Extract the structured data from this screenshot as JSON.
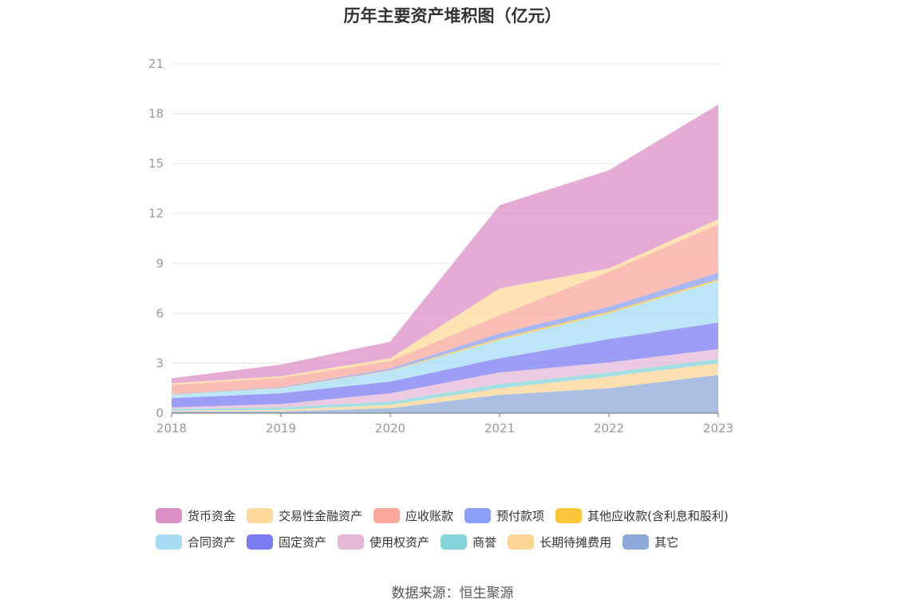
{
  "title": "历年主要资产堆积图（亿元）",
  "source": "数据来源：恒生聚源",
  "chart_data": {
    "type": "area",
    "stacked": true,
    "title": "历年主要资产堆积图（亿元）",
    "x": [
      "2018",
      "2019",
      "2020",
      "2021",
      "2022",
      "2023"
    ],
    "yticks": [
      0,
      3,
      6,
      9,
      12,
      15,
      18,
      21
    ],
    "ylim": [
      0,
      21
    ],
    "grid": true,
    "legend_position": "bottom",
    "series": [
      {
        "name": "其它",
        "color": "#8fa9d9",
        "values": [
          0.1,
          0.1,
          0.3,
          1.1,
          1.5,
          2.3
        ]
      },
      {
        "name": "长期待摊费用",
        "color": "#fdd695",
        "values": [
          0.05,
          0.1,
          0.2,
          0.4,
          0.7,
          0.7
        ]
      },
      {
        "name": "商誉",
        "color": "#84d4d9",
        "values": [
          0.1,
          0.15,
          0.2,
          0.25,
          0.25,
          0.25
        ]
      },
      {
        "name": "使用权资产",
        "color": "#e6b8d8",
        "values": [
          0.1,
          0.2,
          0.5,
          0.7,
          0.6,
          0.6
        ]
      },
      {
        "name": "固定资产",
        "color": "#7b7cf2",
        "values": [
          0.55,
          0.65,
          0.7,
          0.85,
          1.4,
          1.6
        ]
      },
      {
        "name": "合同资产",
        "color": "#a7dcf5",
        "values": [
          0.2,
          0.3,
          0.65,
          1.1,
          1.55,
          2.5
        ]
      },
      {
        "name": "其他应收款(含利息和股利)",
        "color": "#fcc63a",
        "values": [
          0.02,
          0.02,
          0.03,
          0.1,
          0.1,
          0.1
        ]
      },
      {
        "name": "预付款项",
        "color": "#8a9ff5",
        "values": [
          0.03,
          0.05,
          0.1,
          0.3,
          0.3,
          0.4
        ]
      },
      {
        "name": "应收账款",
        "color": "#f9a89b",
        "values": [
          0.55,
          0.55,
          0.45,
          1.1,
          2.1,
          2.9
        ]
      },
      {
        "name": "交易性金融资产",
        "color": "#fdd99a",
        "values": [
          0.1,
          0.1,
          0.17,
          1.6,
          0.2,
          0.3
        ]
      },
      {
        "name": "货币资金",
        "color": "#dc8fc6",
        "values": [
          0.3,
          0.7,
          1.0,
          5.0,
          5.9,
          6.9
        ]
      }
    ]
  },
  "legend": {
    "row1": [
      "货币资金",
      "交易性金融资产",
      "应收账款",
      "预付款项",
      "其他应收款(含利息和股利)"
    ],
    "row2": [
      "合同资产",
      "固定资产",
      "使用权资产",
      "商誉",
      "长期待摊费用",
      "其它"
    ],
    "colors": {
      "货币资金": "#dc8fc6",
      "交易性金融资产": "#fdd99a",
      "应收账款": "#f9a89b",
      "预付款项": "#8a9ff5",
      "其他应收款(含利息和股利)": "#fcc63a",
      "合同资产": "#a7dcf5",
      "固定资产": "#7b7cf2",
      "使用权资产": "#e6b8d8",
      "商誉": "#84d4d9",
      "长期待摊费用": "#fdd695",
      "其它": "#8fa9d9"
    }
  }
}
